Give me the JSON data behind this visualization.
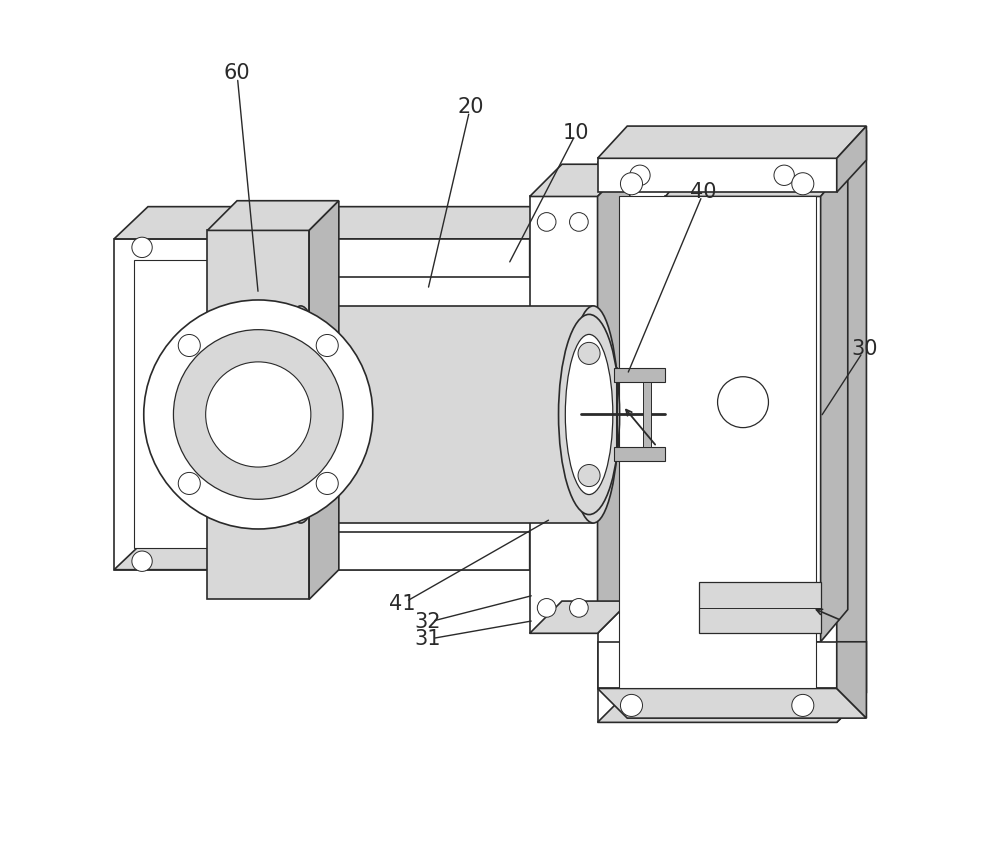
{
  "bg_color": "#ffffff",
  "line_color": "#2a2a2a",
  "light_gray": "#d8d8d8",
  "mid_gray": "#b8b8b8",
  "dark_gray": "#909090",
  "fig_width": 10.0,
  "fig_height": 8.51,
  "dpi": 100,
  "label_fontsize": 15
}
